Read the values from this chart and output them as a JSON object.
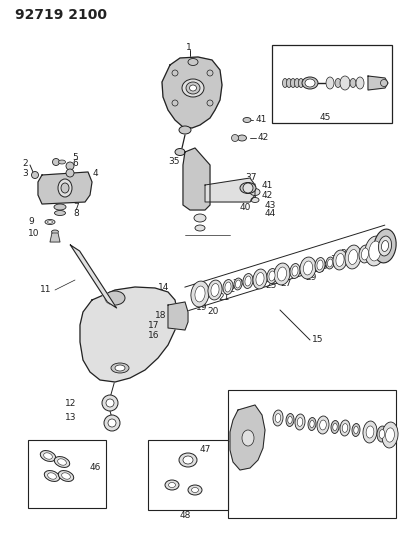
{
  "title": "92719 2100",
  "bg_color": "#ffffff",
  "line_color": "#222222",
  "title_fontsize": 10,
  "label_fontsize": 6.5,
  "fig_width": 4.0,
  "fig_height": 5.33,
  "dpi": 100
}
